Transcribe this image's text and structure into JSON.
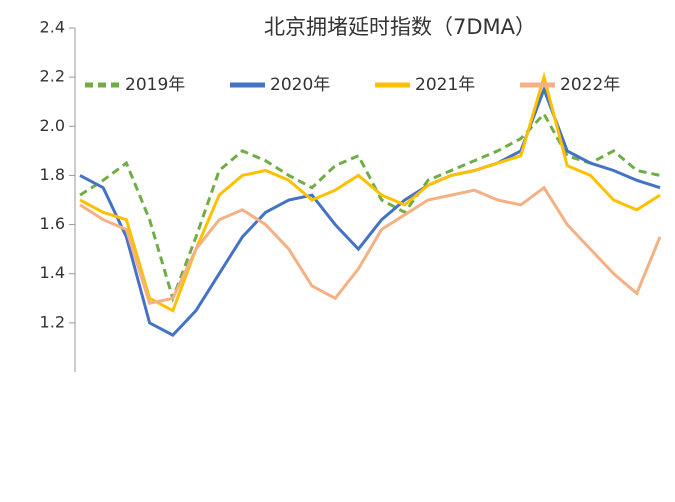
{
  "chart_data": {
    "type": "line",
    "title": "北京拥堵延时指数（7DMA）",
    "ylim": [
      1.0,
      2.4
    ],
    "yticks": [
      1.2,
      1.4,
      1.6,
      1.8,
      {
        "value": 2,
        "label": "2.0"
      },
      2.2,
      2.4
    ],
    "series": [
      {
        "name": "2019年",
        "color": "#70ad47",
        "dashed": true,
        "values": [
          1.72,
          1.78,
          1.85,
          1.62,
          1.3,
          1.55,
          1.82,
          1.9,
          1.86,
          1.8,
          1.75,
          1.84,
          1.88,
          1.7,
          1.65,
          1.78,
          1.82,
          1.86,
          1.9,
          1.95,
          2.05,
          1.88,
          1.85,
          1.9,
          1.82,
          1.8
        ]
      },
      {
        "name": "2020年",
        "color": "#4472c4",
        "dashed": false,
        "values": [
          1.8,
          1.75,
          1.55,
          1.2,
          1.15,
          1.25,
          1.4,
          1.55,
          1.65,
          1.7,
          1.72,
          1.6,
          1.5,
          1.62,
          1.7,
          1.76,
          1.8,
          1.82,
          1.85,
          1.9,
          2.15,
          1.9,
          1.85,
          1.82,
          1.78,
          1.75
        ]
      },
      {
        "name": "2021年",
        "color": "#ffc000",
        "dashed": false,
        "values": [
          1.7,
          1.65,
          1.62,
          1.3,
          1.25,
          1.5,
          1.72,
          1.8,
          1.82,
          1.78,
          1.7,
          1.74,
          1.8,
          1.72,
          1.68,
          1.76,
          1.8,
          1.82,
          1.85,
          1.88,
          2.2,
          1.84,
          1.8,
          1.7,
          1.66,
          1.72
        ]
      },
      {
        "name": "2022年",
        "color": "#f4b183",
        "dashed": false,
        "values": [
          1.68,
          1.62,
          1.58,
          1.28,
          1.3,
          1.5,
          1.62,
          1.66,
          1.6,
          1.5,
          1.35,
          1.3,
          1.42,
          1.58,
          1.64,
          1.7,
          1.72,
          1.74,
          1.7,
          1.68,
          1.75,
          1.6,
          1.5,
          1.4,
          1.32,
          1.55
        ]
      }
    ]
  }
}
